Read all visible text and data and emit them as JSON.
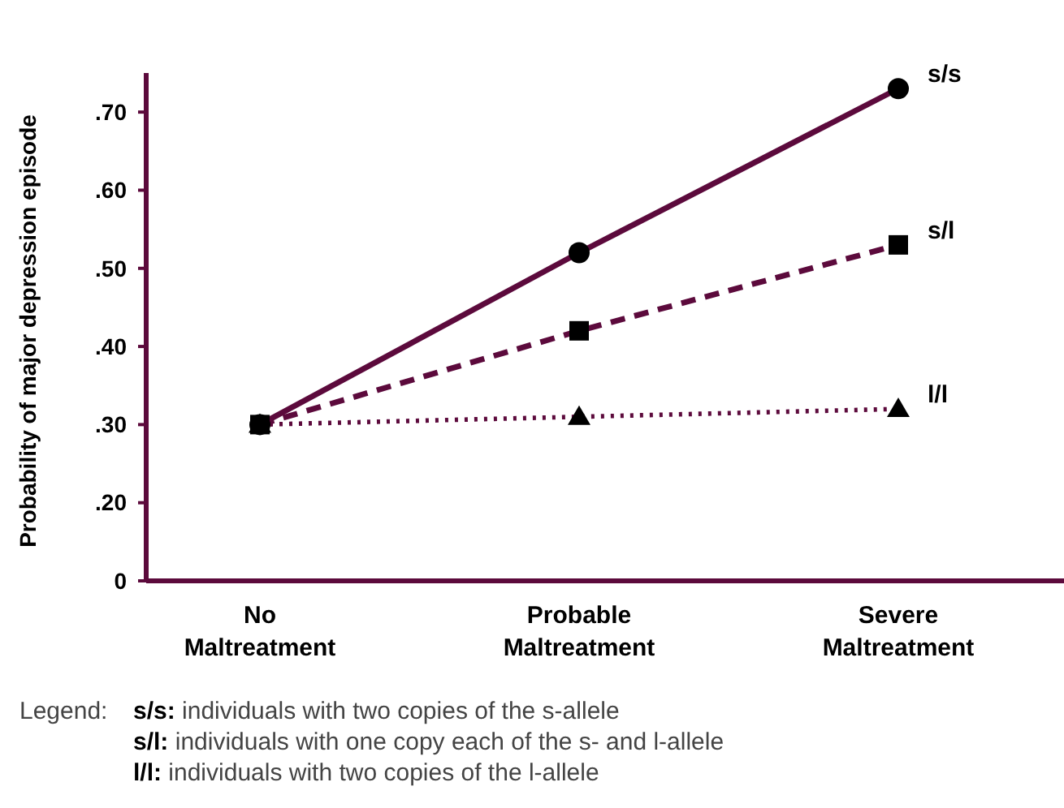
{
  "chart_data": {
    "type": "line",
    "ylabel": "Probability of major depression episode",
    "categories": [
      "No Maltreatment",
      "Probable Maltreatment",
      "Severe Maltreatment"
    ],
    "ylim": [
      0.1,
      0.75
    ],
    "yticks": [
      {
        "value": 0.1,
        "label": "0"
      },
      {
        "value": 0.2,
        "label": ".20"
      },
      {
        "value": 0.3,
        "label": ".30"
      },
      {
        "value": 0.4,
        "label": ".40"
      },
      {
        "value": 0.5,
        "label": ".50"
      },
      {
        "value": 0.6,
        "label": ".60"
      },
      {
        "value": 0.7,
        "label": ".70"
      }
    ],
    "grid": false,
    "series": [
      {
        "name": "s/s",
        "color": "#5c0a3c",
        "values": [
          0.3,
          0.52,
          0.73
        ],
        "marker": "circle",
        "line_style": "solid"
      },
      {
        "name": "s/l",
        "color": "#5c0a3c",
        "values": [
          0.3,
          0.42,
          0.53
        ],
        "marker": "square",
        "line_style": "dashed"
      },
      {
        "name": "l/l",
        "color": "#5c0a3c",
        "values": [
          0.3,
          0.31,
          0.32
        ],
        "marker": "triangle",
        "line_style": "dotted"
      }
    ],
    "annotations": [
      "Legend:",
      "s/s: individuals with two copies of the s-allele",
      "s/l: individuals with one copy each of the s- and l-allele",
      "l/l: individuals with two copies of the l-allele"
    ]
  }
}
